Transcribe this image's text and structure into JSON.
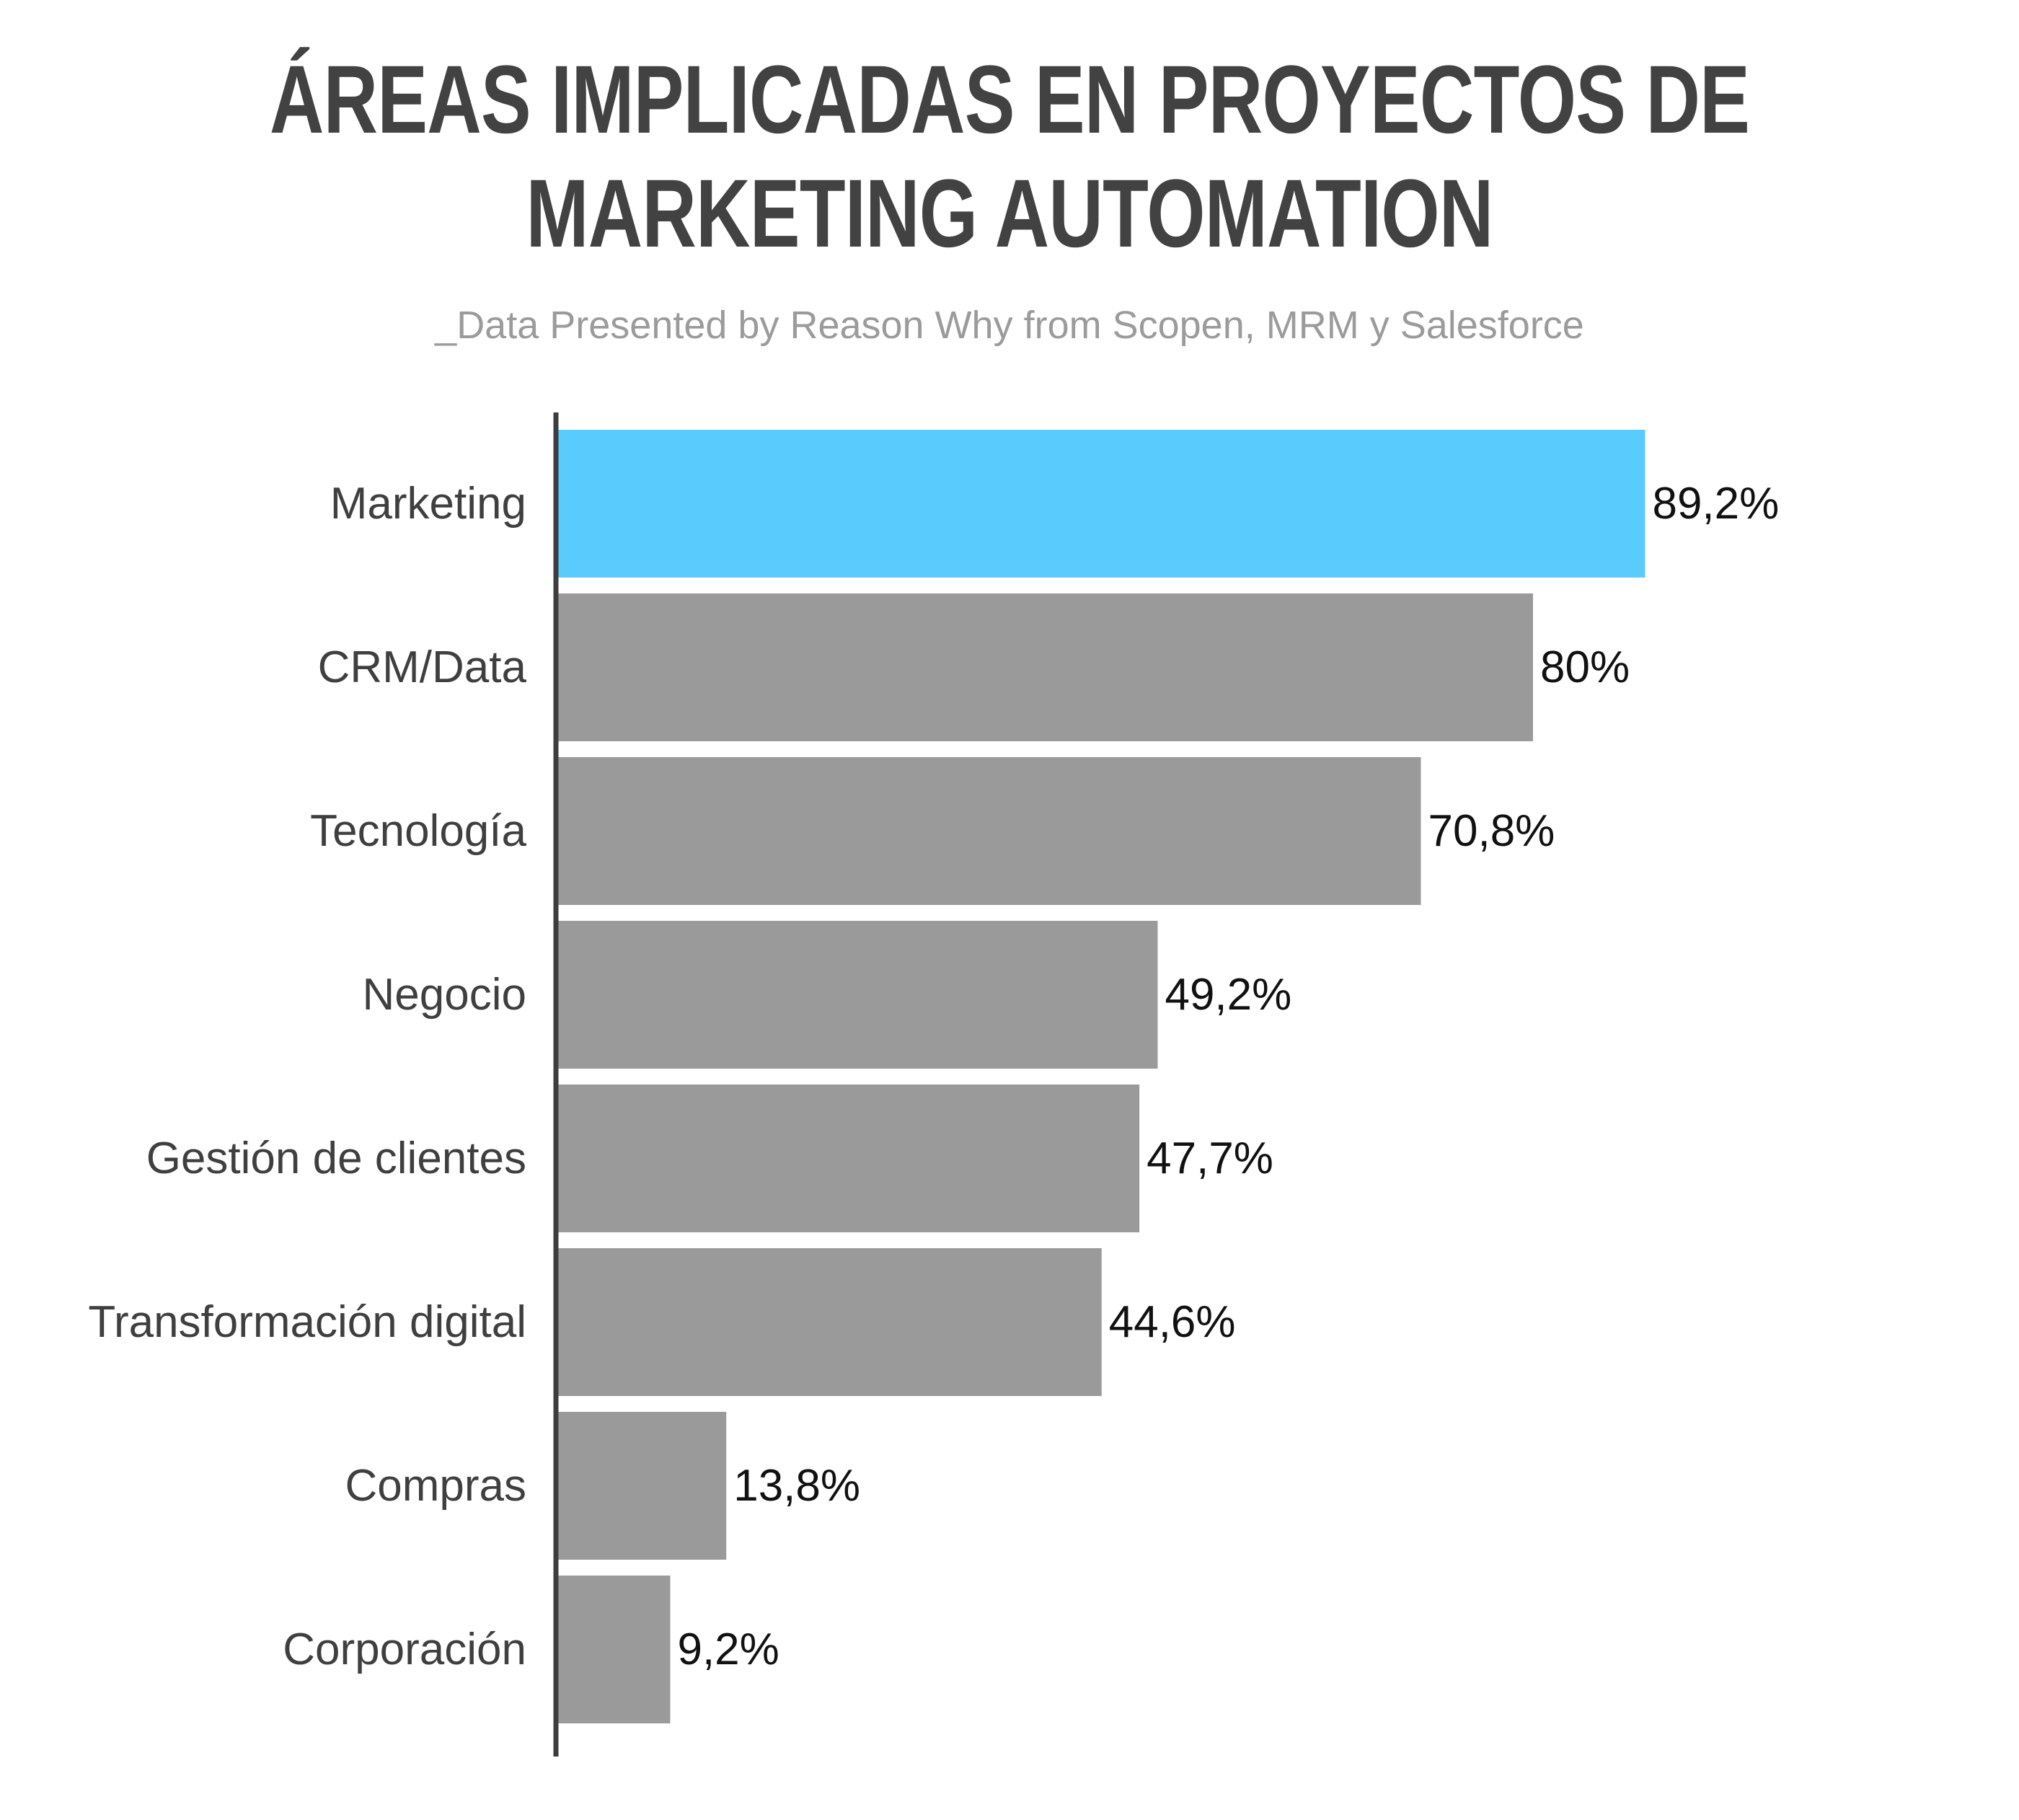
{
  "chart_data": {
    "type": "bar",
    "orientation": "horizontal",
    "title_lines": [
      "ÁREAS IMPLICADAS EN PROYECTOS DE",
      "MARKETING AUTOMATION"
    ],
    "subtitle": "_Data Presented by Reason Why from Scopen, MRM y Salesforce",
    "categories": [
      "Marketing",
      "CRM/Data",
      "Tecnología",
      "Negocio",
      "Gestión de clientes",
      "Transformación digital",
      "Compras",
      "Corporación"
    ],
    "values": [
      89.2,
      80,
      70.8,
      49.2,
      47.7,
      44.6,
      13.8,
      9.2
    ],
    "value_labels": [
      "89,2%",
      "80%",
      "70,8%",
      "49,2%",
      "47,7%",
      "44,6%",
      "13,8%",
      "9,2%"
    ],
    "xlim": [
      0,
      100
    ],
    "grid": false,
    "legend": "none",
    "colors": {
      "highlight": "#5acbfd",
      "bar": "#9a9a9a",
      "axis": "#3d3d3d"
    },
    "highlight_index": 0
  }
}
